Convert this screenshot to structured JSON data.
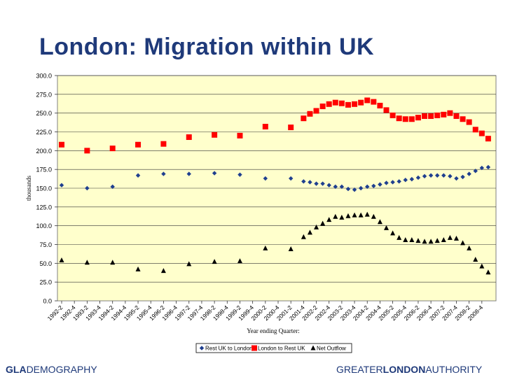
{
  "slide": {
    "title": "London: Migration within UK",
    "footer_left_bold": "GLA",
    "footer_left_rest": "DEMOGRAPHY",
    "footer_right_pre": "GREATER",
    "footer_right_bold": "LONDON",
    "footer_right_post": "AUTHORITY"
  },
  "colors": {
    "plot_bg": "#FFFFCC",
    "title": "#1f3a7a",
    "series_rest_to_london": "#1f3f8f",
    "series_london_to_rest": "#ff0000",
    "series_net_outflow": "#000000"
  },
  "chart_data": {
    "type": "scatter",
    "title": "",
    "xlabel": "Year ending Quarter:",
    "ylabel": "thousands",
    "ylim": [
      0,
      300
    ],
    "y_ticks": [
      "0.0",
      "25.0",
      "50.0",
      "75.0",
      "100.0",
      "125.0",
      "150.0",
      "175.0",
      "200.0",
      "225.0",
      "250.0",
      "275.0",
      "300.0"
    ],
    "x_tick_labels": [
      "1992-2",
      "1992-4",
      "1993-2",
      "1993-4",
      "1994-2",
      "1994-4",
      "1995-2",
      "1995-4",
      "1996-2",
      "1996-4",
      "1997-2",
      "1997-4",
      "1998-2",
      "1998-4",
      "1999-2",
      "1999-4",
      "2000-2",
      "2000-4",
      "2001-2",
      "2001-4",
      "2002-2",
      "2002-4",
      "2003-2",
      "2003-4",
      "2004-2",
      "2004-4",
      "2005-2",
      "2005-4",
      "2006-2",
      "2006-4",
      "2007-2",
      "2007-4",
      "2008-2",
      "2008-4"
    ],
    "grid": "horizontal",
    "legend": "bottom",
    "series": [
      {
        "name": "Rest UK to London",
        "marker": "diamond",
        "x": [
          "1992-2",
          "1993-2",
          "1994-2",
          "1995-2",
          "1996-2",
          "1997-2",
          "1998-2",
          "1999-2",
          "2000-2",
          "2001-2",
          "2001-4",
          "2002-1",
          "2002-2",
          "2002-3",
          "2002-4",
          "2003-1",
          "2003-2",
          "2003-3",
          "2003-4",
          "2004-1",
          "2004-2",
          "2004-3",
          "2004-4",
          "2005-1",
          "2005-2",
          "2005-3",
          "2005-4",
          "2006-1",
          "2006-2",
          "2006-3",
          "2006-4",
          "2007-1",
          "2007-2",
          "2007-3",
          "2007-4",
          "2008-1",
          "2008-2",
          "2008-3",
          "2008-4",
          "2009-1"
        ],
        "y": [
          154,
          150,
          152,
          167,
          169,
          169,
          170,
          168,
          163,
          163,
          159,
          158,
          156,
          156,
          154,
          152,
          152,
          149,
          148,
          150,
          152,
          153,
          155,
          157,
          158,
          159,
          161,
          162,
          164,
          166,
          167,
          167,
          167,
          166,
          163,
          165,
          169,
          173,
          177,
          178
        ]
      },
      {
        "name": "London to Rest UK",
        "marker": "square",
        "x": [
          "1992-2",
          "1993-2",
          "1994-2",
          "1995-2",
          "1996-2",
          "1997-2",
          "1998-2",
          "1999-2",
          "2000-2",
          "2001-2",
          "2001-4",
          "2002-1",
          "2002-2",
          "2002-3",
          "2002-4",
          "2003-1",
          "2003-2",
          "2003-3",
          "2003-4",
          "2004-1",
          "2004-2",
          "2004-3",
          "2004-4",
          "2005-1",
          "2005-2",
          "2005-3",
          "2005-4",
          "2006-1",
          "2006-2",
          "2006-3",
          "2006-4",
          "2007-1",
          "2007-2",
          "2007-3",
          "2007-4",
          "2008-1",
          "2008-2",
          "2008-3",
          "2008-4",
          "2009-1"
        ],
        "y": [
          208,
          200,
          203,
          208,
          209,
          218,
          221,
          220,
          232,
          231,
          243,
          249,
          253,
          259,
          262,
          264,
          263,
          261,
          262,
          264,
          267,
          265,
          260,
          254,
          247,
          243,
          242,
          242,
          244,
          246,
          246,
          247,
          248,
          250,
          246,
          242,
          238,
          228,
          223,
          216
        ]
      },
      {
        "name": "Net Outflow",
        "marker": "triangle",
        "x": [
          "1992-2",
          "1993-2",
          "1994-2",
          "1995-2",
          "1996-2",
          "1997-2",
          "1998-2",
          "1999-2",
          "2000-2",
          "2001-2",
          "2001-4",
          "2002-1",
          "2002-2",
          "2002-3",
          "2002-4",
          "2003-1",
          "2003-2",
          "2003-3",
          "2003-4",
          "2004-1",
          "2004-2",
          "2004-3",
          "2004-4",
          "2005-1",
          "2005-2",
          "2005-3",
          "2005-4",
          "2006-1",
          "2006-2",
          "2006-3",
          "2006-4",
          "2007-1",
          "2007-2",
          "2007-3",
          "2007-4",
          "2008-1",
          "2008-2",
          "2008-3",
          "2008-4",
          "2009-1"
        ],
        "y": [
          54,
          51,
          51,
          42,
          40,
          49,
          52,
          53,
          70,
          69,
          85,
          91,
          98,
          103,
          108,
          112,
          111,
          113,
          114,
          114,
          115,
          112,
          105,
          97,
          90,
          84,
          81,
          81,
          80,
          79,
          79,
          80,
          81,
          84,
          83,
          77,
          70,
          55,
          46,
          38
        ]
      }
    ]
  }
}
